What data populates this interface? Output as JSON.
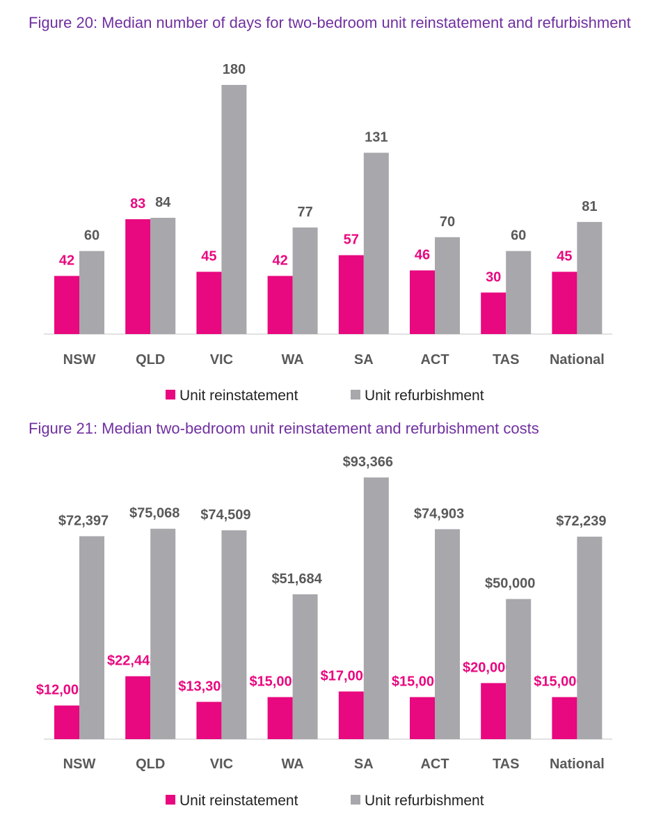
{
  "colors": {
    "reinstatement": "#E8087F",
    "refurbishment": "#A8A7AC",
    "label_gray": "#595959",
    "title": "#7030A0"
  },
  "chart_data": [
    {
      "type": "bar",
      "title": "Figure 20: Median number of days for two-bedroom unit reinstatement and refurbishment",
      "categories": [
        "NSW",
        "QLD",
        "VIC",
        "WA",
        "SA",
        "ACT",
        "TAS",
        "National"
      ],
      "series": [
        {
          "name": "Unit reinstatement",
          "values": [
            42,
            83,
            45,
            42,
            57,
            46,
            30,
            45
          ],
          "labels": [
            "42",
            "83",
            "45",
            "42",
            "57",
            "46",
            "30",
            "45"
          ]
        },
        {
          "name": "Unit refurbishment",
          "values": [
            60,
            84,
            180,
            77,
            131,
            70,
            60,
            81
          ],
          "labels": [
            "60",
            "84",
            "180",
            "77",
            "131",
            "70",
            "60",
            "81"
          ]
        }
      ],
      "ylim": [
        0,
        180
      ],
      "grid": false,
      "legend": "bottom"
    },
    {
      "type": "bar",
      "title": "Figure 21: Median two-bedroom unit reinstatement and refurbishment costs",
      "categories": [
        "NSW",
        "QLD",
        "VIC",
        "WA",
        "SA",
        "ACT",
        "TAS",
        "National"
      ],
      "series": [
        {
          "name": "Unit reinstatement",
          "values": [
            12000,
            22442,
            13300,
            15000,
            17000,
            15000,
            20000,
            15000
          ],
          "labels": [
            "$12,000",
            "$22,442",
            "$13,300",
            "$15,000",
            "$17,000",
            "$15,000",
            "$20,000",
            "$15,000"
          ]
        },
        {
          "name": "Unit refurbishment",
          "values": [
            72397,
            75068,
            74509,
            51684,
            93366,
            74903,
            50000,
            72239
          ],
          "labels": [
            "$72,397",
            "$75,068",
            "$74,509",
            "$51,684",
            "$93,366",
            "$74,903",
            "$50,000",
            "$72,239"
          ]
        }
      ],
      "ylim": [
        0,
        93366
      ],
      "grid": false,
      "legend": "bottom"
    }
  ]
}
